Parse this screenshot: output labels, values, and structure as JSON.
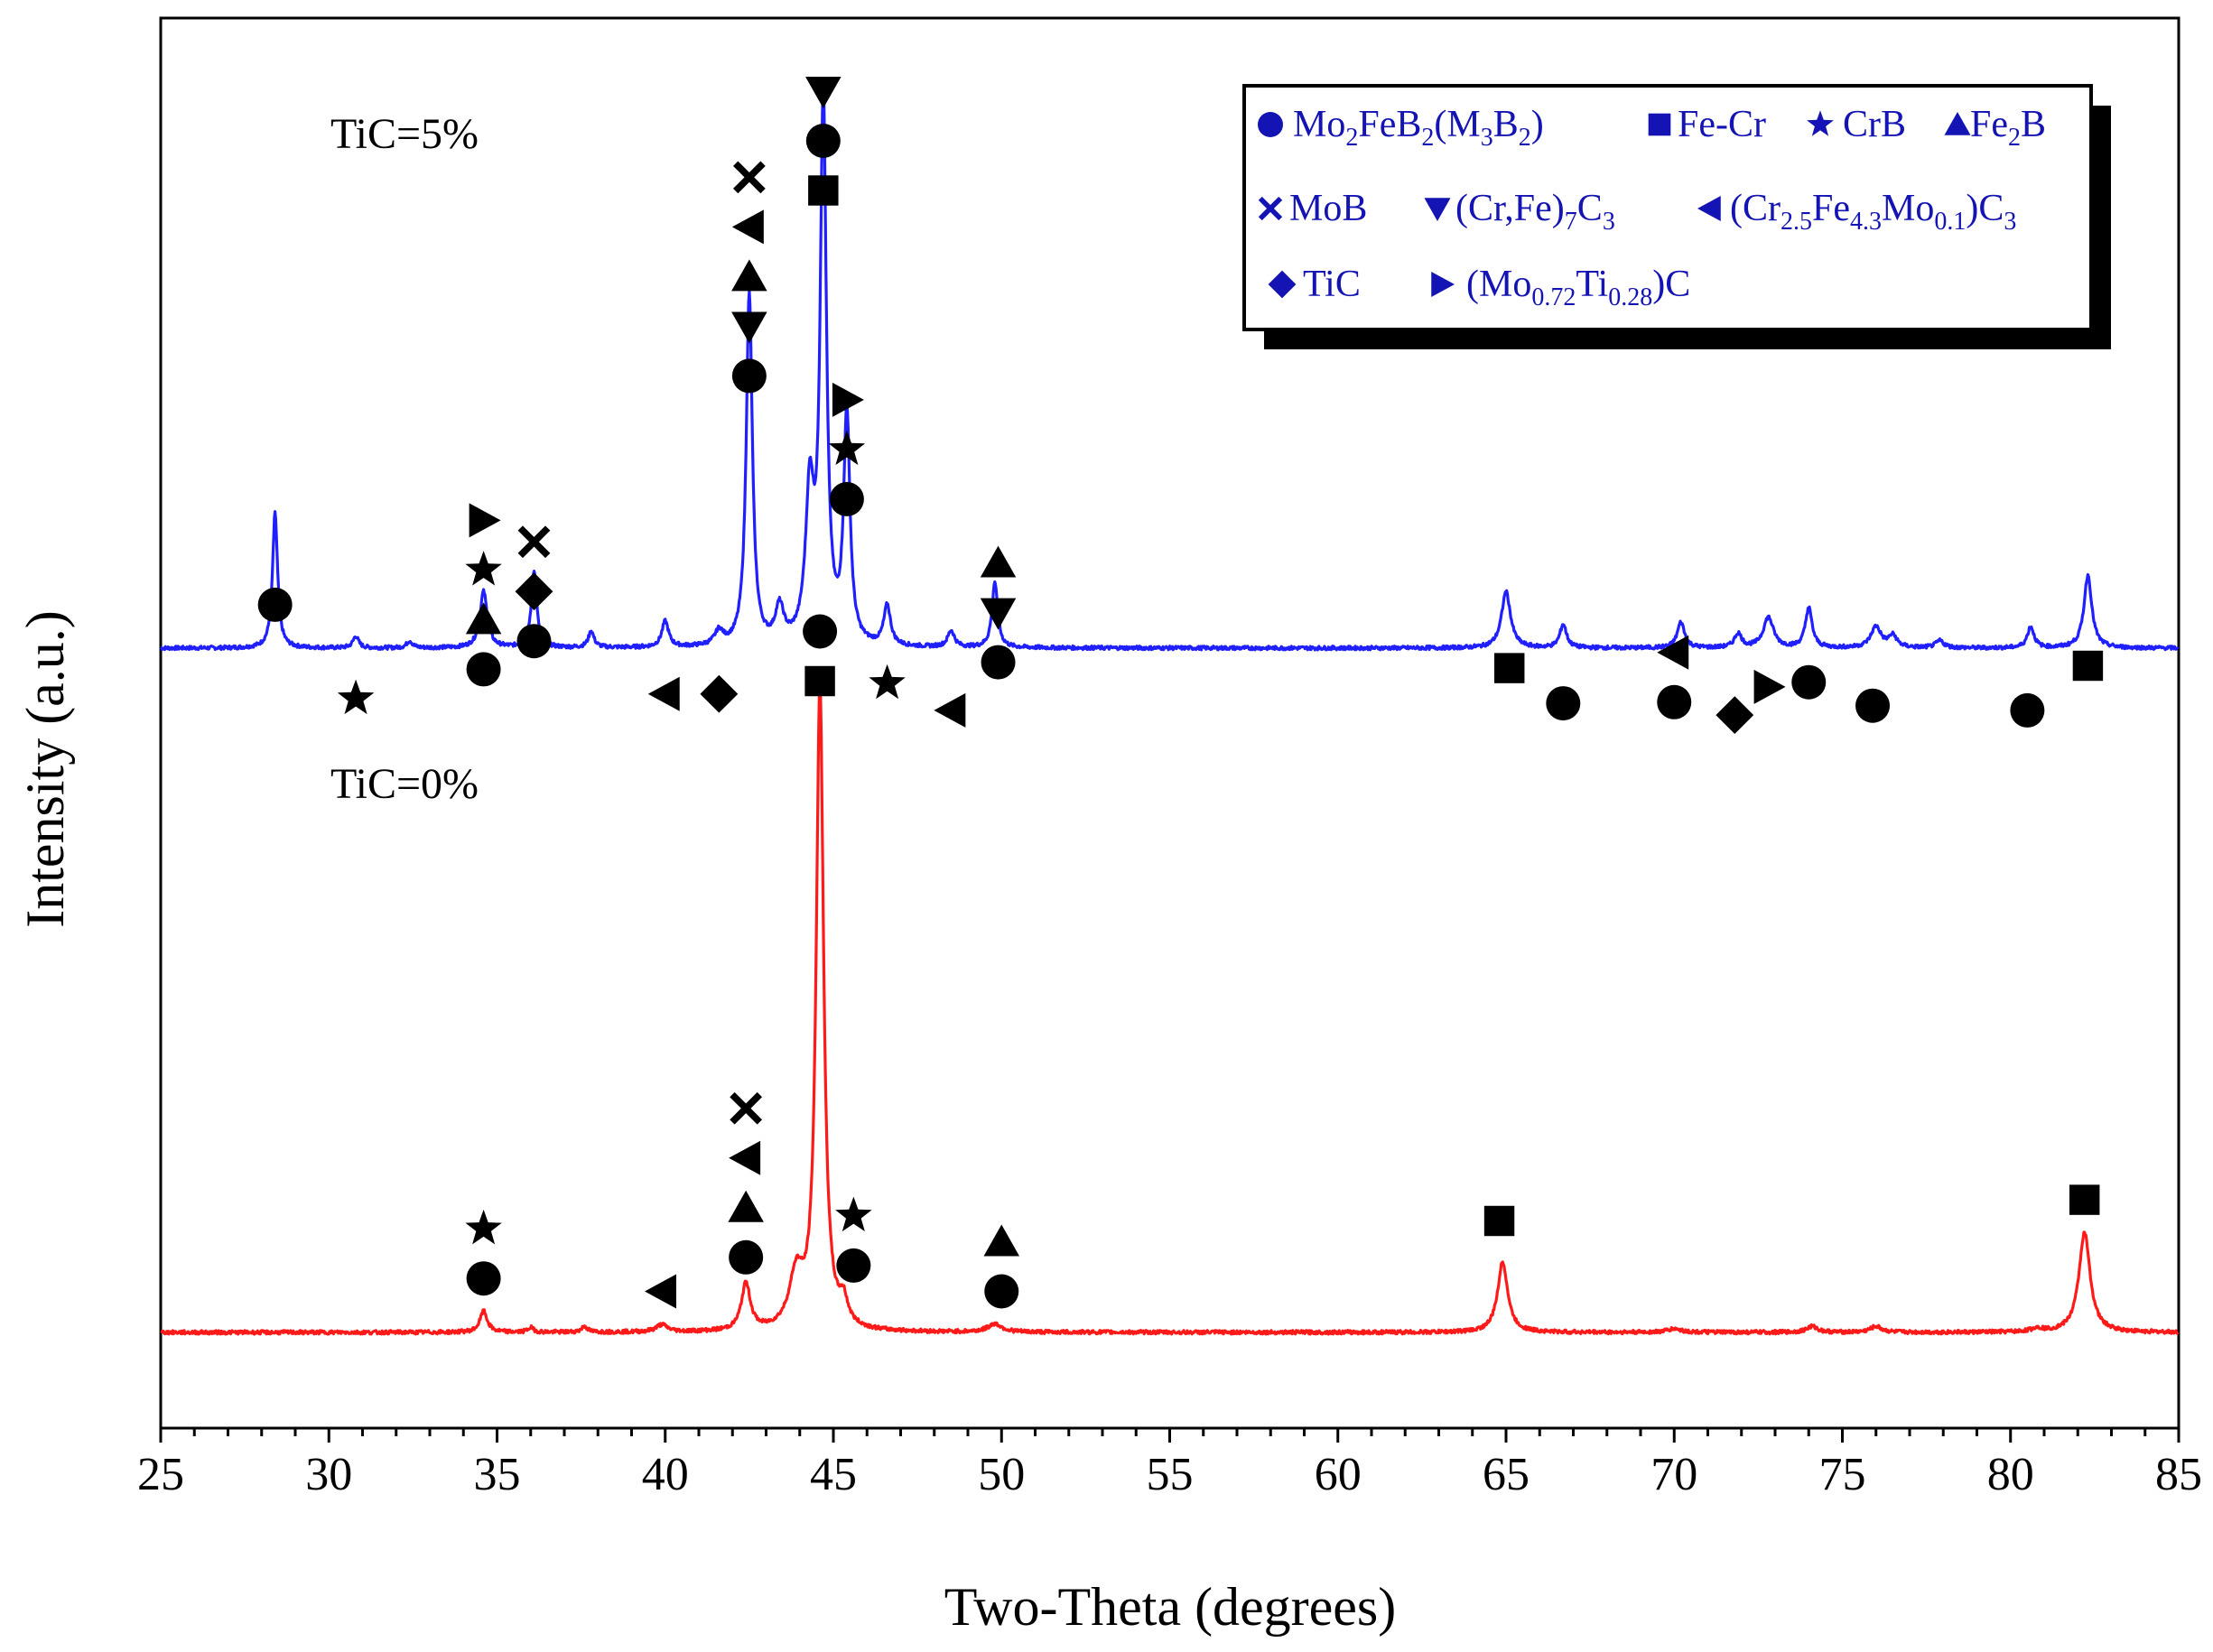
{
  "chart_data": {
    "type": "line",
    "xlabel": "Two-Theta (degrees)",
    "ylabel": "Intensity (a.u.)",
    "xlim": [
      25,
      85
    ],
    "x_ticks": [
      "25",
      "30",
      "35",
      "40",
      "45",
      "50",
      "55",
      "60",
      "65",
      "70",
      "75",
      "80",
      "85"
    ],
    "y_ticks_shown": false,
    "colors": {
      "tic5": "#1f1fff",
      "tic0": "#ff1a1a",
      "legend_text": "#1414b4",
      "markers": "#000000"
    },
    "series": [
      {
        "name": "TiC=5%",
        "label": "TiC=5%",
        "color": "#1f1fff",
        "baseline_intensity": 100,
        "peaks": [
          {
            "two_theta": 28.4,
            "intensity": 115,
            "width": 0.09
          },
          {
            "two_theta": 30.8,
            "intensity": 10,
            "width": 0.1
          },
          {
            "two_theta": 32.4,
            "intensity": 6,
            "width": 0.1
          },
          {
            "two_theta": 34.6,
            "intensity": 48,
            "width": 0.13
          },
          {
            "two_theta": 36.1,
            "intensity": 65,
            "width": 0.1
          },
          {
            "two_theta": 37.8,
            "intensity": 14,
            "width": 0.1
          },
          {
            "two_theta": 40.0,
            "intensity": 22,
            "width": 0.12
          },
          {
            "two_theta": 41.6,
            "intensity": 12,
            "width": 0.15
          },
          {
            "two_theta": 42.5,
            "intensity": 300,
            "width": 0.11
          },
          {
            "two_theta": 43.4,
            "intensity": 30,
            "width": 0.15
          },
          {
            "two_theta": 44.3,
            "intensity": 125,
            "width": 0.15
          },
          {
            "two_theta": 44.7,
            "intensity": 460,
            "width": 0.11
          },
          {
            "two_theta": 45.4,
            "intensity": 195,
            "width": 0.11
          },
          {
            "two_theta": 46.6,
            "intensity": 34,
            "width": 0.12
          },
          {
            "two_theta": 48.5,
            "intensity": 14,
            "width": 0.12
          },
          {
            "two_theta": 49.8,
            "intensity": 56,
            "width": 0.1
          },
          {
            "two_theta": 65.0,
            "intensity": 48,
            "width": 0.16
          },
          {
            "two_theta": 66.7,
            "intensity": 20,
            "width": 0.12
          },
          {
            "two_theta": 70.2,
            "intensity": 22,
            "width": 0.13
          },
          {
            "two_theta": 71.9,
            "intensity": 12,
            "width": 0.13
          },
          {
            "two_theta": 72.8,
            "intensity": 26,
            "width": 0.18
          },
          {
            "two_theta": 74.0,
            "intensity": 34,
            "width": 0.12
          },
          {
            "two_theta": 76.0,
            "intensity": 18,
            "width": 0.18
          },
          {
            "two_theta": 76.5,
            "intensity": 10,
            "width": 0.15
          },
          {
            "two_theta": 77.9,
            "intensity": 6,
            "width": 0.15
          },
          {
            "two_theta": 80.6,
            "intensity": 18,
            "width": 0.12
          },
          {
            "two_theta": 82.3,
            "intensity": 62,
            "width": 0.14
          }
        ]
      },
      {
        "name": "TiC=0%",
        "label": "TiC=0%",
        "color": "#ff1a1a",
        "baseline_intensity": 0,
        "peaks": [
          {
            "two_theta": 34.6,
            "intensity": 18,
            "width": 0.13
          },
          {
            "two_theta": 36.0,
            "intensity": 4,
            "width": 0.1
          },
          {
            "two_theta": 37.6,
            "intensity": 5,
            "width": 0.1
          },
          {
            "two_theta": 39.9,
            "intensity": 6,
            "width": 0.2
          },
          {
            "two_theta": 42.4,
            "intensity": 40,
            "width": 0.16
          },
          {
            "two_theta": 43.9,
            "intensity": 45,
            "width": 0.25
          },
          {
            "two_theta": 44.6,
            "intensity": 550,
            "width": 0.13
          },
          {
            "two_theta": 45.3,
            "intensity": 20,
            "width": 0.15
          },
          {
            "two_theta": 49.8,
            "intensity": 7,
            "width": 0.25
          },
          {
            "two_theta": 64.9,
            "intensity": 60,
            "width": 0.18
          },
          {
            "two_theta": 70.0,
            "intensity": 3,
            "width": 0.25
          },
          {
            "two_theta": 74.1,
            "intensity": 5,
            "width": 0.2
          },
          {
            "two_theta": 76.0,
            "intensity": 5,
            "width": 0.2
          },
          {
            "two_theta": 80.8,
            "intensity": 3,
            "width": 0.2
          },
          {
            "two_theta": 82.2,
            "intensity": 85,
            "width": 0.2
          }
        ]
      }
    ],
    "phase_markers": {
      "TiC=5%": [
        {
          "two_theta": 28.4,
          "intensity": 137,
          "symbols": [
            "circle"
          ]
        },
        {
          "two_theta": 30.8,
          "intensity": 57,
          "symbols": [
            "star"
          ]
        },
        {
          "two_theta": 34.6,
          "intensity": 82,
          "symbols": [
            "circle",
            "triangle-up",
            "star",
            "triangle-right"
          ]
        },
        {
          "two_theta": 36.1,
          "intensity": 106,
          "symbols": [
            "circle",
            "diamond",
            "cross"
          ]
        },
        {
          "two_theta": 40.0,
          "intensity": 61,
          "symbols": [
            "triangle-left"
          ]
        },
        {
          "two_theta": 41.6,
          "intensity": 61,
          "symbols": [
            "diamond"
          ]
        },
        {
          "two_theta": 42.5,
          "intensity": 332,
          "symbols": [
            "circle",
            "triangle-down",
            "triangle-up",
            "triangle-left",
            "cross"
          ]
        },
        {
          "two_theta": 44.7,
          "intensity": 490,
          "symbols": [
            "square",
            "circle",
            "triangle-down"
          ]
        },
        {
          "two_theta": 45.4,
          "intensity": 227,
          "symbols": [
            "circle",
            "star",
            "triangle-right"
          ]
        },
        {
          "two_theta": 46.6,
          "intensity": 70,
          "symbols": [
            "star"
          ]
        },
        {
          "two_theta": 48.5,
          "intensity": 47,
          "symbols": [
            "triangle-left"
          ]
        },
        {
          "two_theta": 49.9,
          "intensity": 88,
          "symbols": [
            "circle",
            "triangle-down",
            "triangle-up"
          ]
        },
        {
          "two_theta": 65.1,
          "intensity": 83,
          "symbols": [
            "square"
          ]
        },
        {
          "two_theta": 66.7,
          "intensity": 53,
          "symbols": [
            "circle"
          ]
        },
        {
          "two_theta": 70.0,
          "intensity": 54,
          "symbols": [
            "circle",
            "triangle-left"
          ]
        },
        {
          "two_theta": 71.8,
          "intensity": 43,
          "symbols": [
            "diamond"
          ]
        },
        {
          "two_theta": 72.8,
          "intensity": 67,
          "symbols": [
            "triangle-right"
          ]
        },
        {
          "two_theta": 74.0,
          "intensity": 71,
          "symbols": [
            "circle"
          ]
        },
        {
          "two_theta": 75.9,
          "intensity": 51,
          "symbols": [
            "circle"
          ]
        },
        {
          "two_theta": 80.5,
          "intensity": 47,
          "symbols": [
            "circle"
          ]
        },
        {
          "two_theta": 82.3,
          "intensity": 85,
          "symbols": [
            "square"
          ]
        }
      ],
      "TiC=0%": [
        {
          "two_theta": 34.6,
          "intensity": 46,
          "symbols": [
            "circle",
            "star"
          ]
        },
        {
          "two_theta": 39.9,
          "intensity": 35,
          "symbols": [
            "triangle-left"
          ]
        },
        {
          "two_theta": 42.4,
          "intensity": 64,
          "symbols": [
            "circle",
            "triangle-up",
            "triangle-left",
            "cross"
          ]
        },
        {
          "two_theta": 44.6,
          "intensity": 555,
          "symbols": [
            "square",
            "circle"
          ]
        },
        {
          "two_theta": 45.6,
          "intensity": 57,
          "symbols": [
            "circle",
            "star"
          ]
        },
        {
          "two_theta": 50.0,
          "intensity": 35,
          "symbols": [
            "circle",
            "triangle-up"
          ]
        },
        {
          "two_theta": 64.8,
          "intensity": 95,
          "symbols": [
            "square"
          ]
        },
        {
          "two_theta": 82.2,
          "intensity": 113,
          "symbols": [
            "square"
          ]
        }
      ]
    },
    "legend": {
      "position": "top-right",
      "items": [
        {
          "symbol": "circle",
          "label": "Mo₂FeB₂(M₃B₂)",
          "parts": [
            [
              "Mo",
              ""
            ],
            [
              "2",
              "sub"
            ],
            [
              "FeB",
              ""
            ],
            [
              "2",
              "sub"
            ],
            [
              "(M",
              ""
            ],
            [
              "3",
              "sub"
            ],
            [
              "B",
              ""
            ],
            [
              "2",
              "sub"
            ],
            [
              ")",
              ""
            ]
          ]
        },
        {
          "symbol": "square",
          "label": "Fe-Cr",
          "parts": [
            [
              "Fe-Cr",
              ""
            ]
          ]
        },
        {
          "symbol": "star",
          "label": "CrB",
          "parts": [
            [
              "CrB",
              ""
            ]
          ]
        },
        {
          "symbol": "triangle-up",
          "label": "Fe₂B",
          "parts": [
            [
              "Fe",
              ""
            ],
            [
              "2",
              "sub"
            ],
            [
              "B",
              ""
            ]
          ]
        },
        {
          "symbol": "cross",
          "label": "MoB",
          "parts": [
            [
              "MoB",
              ""
            ]
          ]
        },
        {
          "symbol": "triangle-down",
          "label": "(Cr,Fe)₇C₃",
          "parts": [
            [
              "(Cr,Fe)",
              ""
            ],
            [
              "7",
              "sub"
            ],
            [
              "C",
              ""
            ],
            [
              "3",
              "sub"
            ]
          ]
        },
        {
          "symbol": "triangle-left",
          "label": "(Cr2.5Fe4.3Mo0.1)C3",
          "parts": [
            [
              "(Cr",
              ""
            ],
            [
              "2.5",
              "sub"
            ],
            [
              "Fe",
              ""
            ],
            [
              "4.3",
              "sub"
            ],
            [
              "Mo",
              ""
            ],
            [
              "0.1",
              "sub"
            ],
            [
              ")C",
              ""
            ],
            [
              "3",
              "sub"
            ]
          ]
        },
        {
          "symbol": "diamond",
          "label": "TiC",
          "parts": [
            [
              "TiC",
              ""
            ]
          ]
        },
        {
          "symbol": "triangle-right",
          "label": "(Mo0.72Ti0.28)C",
          "parts": [
            [
              "(Mo",
              ""
            ],
            [
              "0.72",
              "sub"
            ],
            [
              "Ti",
              ""
            ],
            [
              "0.28",
              "sub"
            ],
            [
              ")C",
              ""
            ]
          ]
        }
      ]
    }
  }
}
